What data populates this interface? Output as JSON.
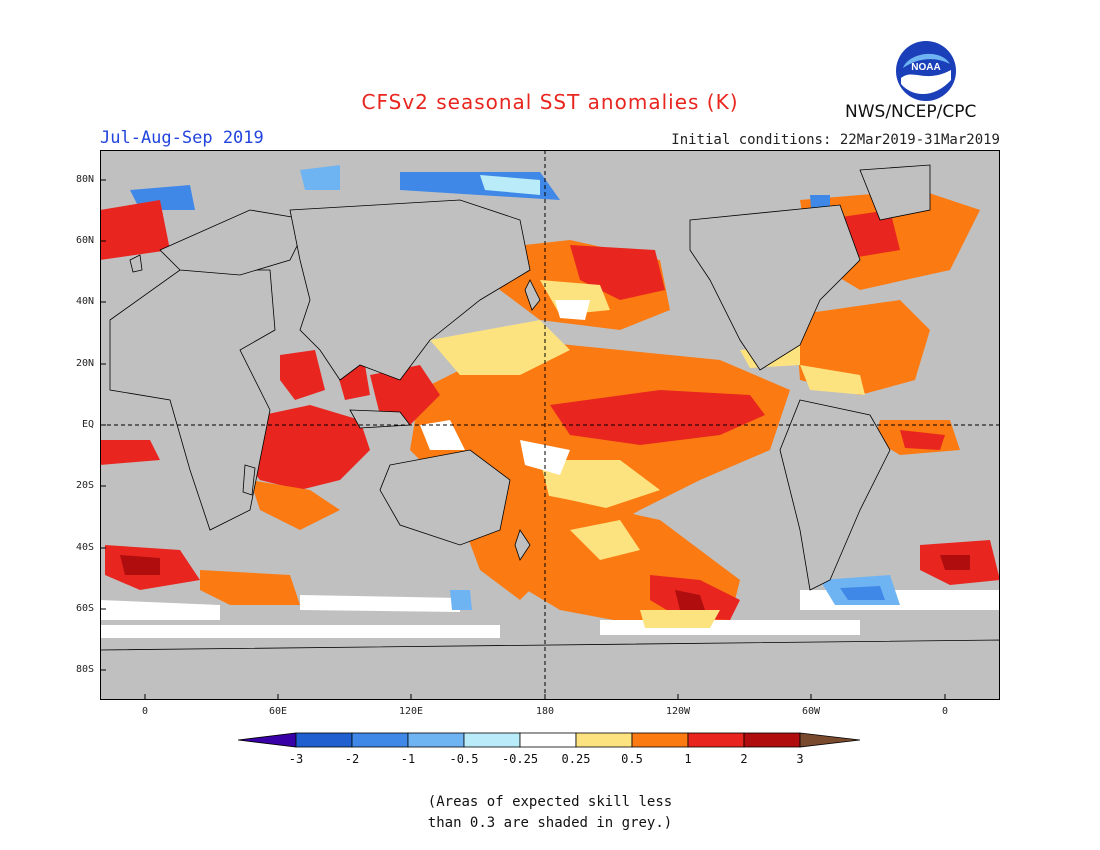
{
  "title": "CFSv2 seasonal SST anomalies (K)",
  "season": "Jul-Aug-Sep 2019",
  "initial_conditions": "Initial conditions: 22Mar2019-31Mar2019",
  "agency": "NWS/NCEP/CPC",
  "logo_text": "NOAA",
  "lat_labels": [
    "80N",
    "60N",
    "40N",
    "20N",
    "EQ",
    "20S",
    "40S",
    "60S",
    "80S"
  ],
  "lon_labels": [
    "0",
    "60E",
    "120E",
    "180",
    "120W",
    "60W",
    "0"
  ],
  "colorbar": {
    "labels": [
      "-3",
      "-2",
      "-1",
      "-0.5",
      "-0.25",
      "0.25",
      "0.5",
      "1",
      "2",
      "3"
    ],
    "colors": [
      "#3a00a8",
      "#1f5fd0",
      "#3f88e8",
      "#6fb4f2",
      "#b9ecf8",
      "#ffffff",
      "#fde380",
      "#fb7a12",
      "#e8261f",
      "#b00e0e",
      "#7a4a2e"
    ]
  },
  "map_colors": {
    "land": "#c0c0c0",
    "ocean_grey": "#c0c0c0",
    "neutral": "#ffffff",
    "warm_light": "#fde380",
    "warm_medium": "#fb7a12",
    "warm_strong": "#e8261f",
    "warm_extreme": "#b00e0e",
    "cool_light": "#b9ecf8",
    "cool_medium": "#6fb4f2",
    "cool_strong": "#3f88e8"
  },
  "note": [
    "(Areas of expected skill less",
    "than 0.3 are shaded in grey.)"
  ]
}
